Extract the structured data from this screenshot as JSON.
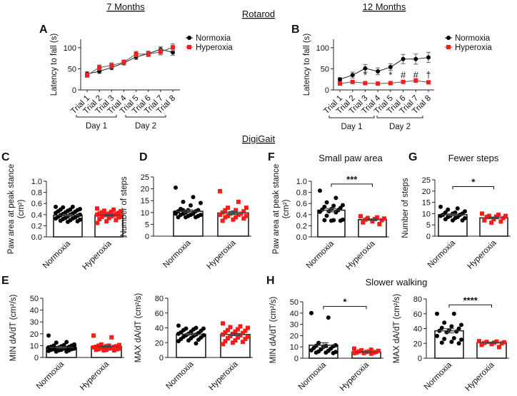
{
  "headings": {
    "seven_months": "7 Months",
    "twelve_months": "12 Months",
    "rotarod": "Rotarod",
    "digigait": "DigiGait"
  },
  "colors": {
    "normoxia": "#000000",
    "hyperoxia": "#ff1a1a",
    "error": "#777777"
  },
  "chart_data": [
    {
      "id": "A",
      "type": "line",
      "letter": "A",
      "title": "",
      "ylabel": "Latency to fall (s)",
      "ylim": [
        0,
        120
      ],
      "yticks": [
        0,
        50,
        100
      ],
      "categories": [
        "Trial 1",
        "Trial 2",
        "Trial 3",
        "Trial 4",
        "Trial 5",
        "Trial 6",
        "Trial 7",
        "Trial 8"
      ],
      "groups": [
        {
          "label": "Day 1"
        },
        {
          "label": "Day 2"
        }
      ],
      "legend": "right",
      "series": [
        {
          "name": "Normoxia",
          "marker": "circle",
          "values": [
            38,
            44,
            53,
            64,
            78,
            86,
            96,
            89
          ],
          "error": [
            5,
            5,
            5,
            5,
            6,
            6,
            6,
            7
          ]
        },
        {
          "name": "Hyperoxia",
          "marker": "square",
          "values": [
            35,
            53,
            58,
            66,
            85,
            85,
            90,
            101
          ],
          "error": [
            5,
            6,
            6,
            5,
            6,
            6,
            7,
            8
          ]
        }
      ],
      "annotations": []
    },
    {
      "id": "B",
      "type": "line",
      "letter": "B",
      "title": "",
      "ylabel": "Latency to fall (s)",
      "ylim": [
        0,
        120
      ],
      "yticks": [
        0,
        50,
        100
      ],
      "categories": [
        "Trial 1",
        "Trial 2",
        "Trial 3",
        "Trial 4",
        "Trial 5",
        "Trial 6",
        "Trial 7",
        "Trial 8"
      ],
      "groups": [
        {
          "label": "Day 1"
        },
        {
          "label": "Day 2"
        }
      ],
      "legend": "right",
      "series": [
        {
          "name": "Normoxia",
          "marker": "circle",
          "values": [
            25,
            35,
            51,
            44,
            54,
            73,
            73,
            77
          ],
          "error": [
            4,
            7,
            9,
            8,
            8,
            11,
            12,
            12
          ]
        },
        {
          "name": "Hyperoxia",
          "marker": "square",
          "values": [
            15,
            19,
            16,
            15,
            16,
            19,
            22,
            18
          ],
          "error": [
            2,
            2,
            2,
            2,
            2,
            2,
            2,
            2
          ]
        }
      ],
      "annotations": [
        {
          "trial": 3,
          "text": "*"
        },
        {
          "trial": 5,
          "text": "*"
        },
        {
          "trial": 6,
          "text": "#"
        },
        {
          "trial": 7,
          "text": "#"
        },
        {
          "trial": 8,
          "text": "†"
        }
      ]
    },
    {
      "id": "C",
      "type": "bar",
      "letter": "C",
      "title": "",
      "ylabel": [
        "Paw area at peak stance",
        "(cm²)"
      ],
      "ylim": [
        0,
        1.0
      ],
      "yticks": [
        "0.0",
        "0.2",
        "0.4",
        "0.6",
        "0.8",
        "1.0"
      ],
      "categories": [
        "Normoxia",
        "Hyperoxia"
      ],
      "means": [
        0.39,
        0.39
      ],
      "sem": [
        0.015,
        0.012
      ],
      "significance": null,
      "points": [
        [
          0.54,
          0.54,
          0.53,
          0.5,
          0.49,
          0.49,
          0.48,
          0.47,
          0.46,
          0.45,
          0.44,
          0.43,
          0.42,
          0.41,
          0.4,
          0.4,
          0.39,
          0.38,
          0.37,
          0.36,
          0.35,
          0.34,
          0.33,
          0.33,
          0.32,
          0.31,
          0.3,
          0.29,
          0.28,
          0.27
        ],
        [
          0.51,
          0.49,
          0.47,
          0.46,
          0.45,
          0.44,
          0.43,
          0.42,
          0.42,
          0.41,
          0.4,
          0.4,
          0.39,
          0.39,
          0.38,
          0.37,
          0.36,
          0.35,
          0.34,
          0.32,
          0.3,
          0.28,
          0.25
        ]
      ]
    },
    {
      "id": "D",
      "type": "bar",
      "letter": "D",
      "title": "",
      "ylabel": [
        "Number of steps"
      ],
      "ylim": [
        0,
        25
      ],
      "yticks": [
        "0",
        "5",
        "10",
        "15",
        "20",
        "25"
      ],
      "categories": [
        "Normoxia",
        "Hyperoxia"
      ],
      "means": [
        10.5,
        9.8
      ],
      "sem": [
        0.6,
        0.6
      ],
      "significance": null,
      "points": [
        [
          20.5,
          16.5,
          14.5,
          14,
          13,
          11.5,
          11,
          11,
          10.5,
          10.5,
          10,
          10,
          9.5,
          9.5,
          9,
          9,
          9,
          8.5,
          8.5,
          8,
          8,
          8,
          9.5,
          10,
          11
        ],
        [
          19,
          14.5,
          12,
          12,
          11,
          11,
          10.5,
          10,
          10,
          9.5,
          9.5,
          9,
          9,
          8.5,
          8.5,
          8,
          8,
          7.5,
          7,
          6.5
        ]
      ]
    },
    {
      "id": "E1",
      "type": "bar",
      "letter": "E",
      "title": "",
      "ylabel": [
        "MIN dA/dT (cm²/s)"
      ],
      "ylim": [
        0,
        50
      ],
      "yticks": [
        "0",
        "10",
        "20",
        "30",
        "40",
        "50"
      ],
      "categories": [
        "Normoxia",
        "Hyperoxia"
      ],
      "means": [
        8.5,
        9.3
      ],
      "sem": [
        0.6,
        0.7
      ],
      "significance": null,
      "points": [
        [
          18.5,
          13,
          12.5,
          11,
          10.5,
          10,
          10,
          9.5,
          9,
          9,
          8.5,
          8.5,
          8,
          8,
          7.5,
          7.5,
          7,
          7,
          6.5,
          6.5,
          6,
          6,
          5.5,
          5,
          5,
          10,
          9
        ],
        [
          18.5,
          17,
          11,
          10.5,
          10,
          10,
          9.5,
          9.5,
          9,
          9,
          8.5,
          8.5,
          8,
          8,
          7.5,
          7.5,
          7,
          7,
          6.5,
          6.5,
          6,
          6
        ]
      ]
    },
    {
      "id": "E2",
      "type": "bar",
      "letter": "",
      "title": "",
      "ylabel": [
        "MAX dA/dT (cm²/s)"
      ],
      "ylim": [
        0,
        80
      ],
      "yticks": [
        "0",
        "20",
        "40",
        "60",
        "80"
      ],
      "categories": [
        "Normoxia",
        "Hyperoxia"
      ],
      "means": [
        31.5,
        31
      ],
      "sem": [
        1.2,
        1.5
      ],
      "significance": null,
      "points": [
        [
          43,
          40,
          39,
          39,
          38,
          37,
          36,
          35,
          34,
          33,
          32,
          32,
          31,
          30,
          30,
          29,
          28,
          27,
          26,
          25,
          24,
          23,
          22,
          19
        ],
        [
          46,
          42,
          41,
          40,
          38,
          37,
          36,
          35,
          34,
          33,
          32,
          31,
          30,
          29,
          28,
          27,
          26,
          25,
          23,
          22,
          21,
          20,
          18
        ]
      ]
    },
    {
      "id": "F",
      "type": "bar",
      "letter": "F",
      "title": "Small paw area",
      "ylabel": [
        "Paw area at peak stance",
        "(cm²)"
      ],
      "ylim": [
        0,
        1.0
      ],
      "yticks": [
        "0.0",
        "0.2",
        "0.4",
        "0.6",
        "0.8",
        "1.0"
      ],
      "categories": [
        "Normoxia",
        "Hyperoxia"
      ],
      "means": [
        0.48,
        0.31
      ],
      "sem": [
        0.03,
        0.014
      ],
      "significance": {
        "label": "***",
        "level": 0.95
      },
      "points": [
        [
          0.83,
          0.7,
          0.62,
          0.57,
          0.56,
          0.54,
          0.52,
          0.5,
          0.49,
          0.48,
          0.46,
          0.45,
          0.44,
          0.38,
          0.31,
          0.3,
          0.3,
          0.29,
          0.29
        ],
        [
          0.37,
          0.35,
          0.34,
          0.33,
          0.32,
          0.31,
          0.3,
          0.28,
          0.26,
          0.23
        ]
      ]
    },
    {
      "id": "G",
      "type": "bar",
      "letter": "G",
      "title": "Fewer steps",
      "ylabel": [
        "Number of steps"
      ],
      "ylim": [
        0,
        25
      ],
      "yticks": [
        "0",
        "5",
        "10",
        "15",
        "20",
        "25"
      ],
      "categories": [
        "Normoxia",
        "Hyperoxia"
      ],
      "means": [
        9.5,
        8.1
      ],
      "sem": [
        0.4,
        0.4
      ],
      "significance": {
        "label": "*",
        "level": 22
      },
      "points": [
        [
          13,
          12.3,
          11.8,
          11,
          10.5,
          10.5,
          10,
          10,
          9.5,
          9.5,
          9,
          9,
          8.5,
          8.5,
          8,
          8,
          7.5,
          7,
          7
        ],
        [
          10,
          9.5,
          9,
          9,
          8.7,
          8.5,
          8,
          7.5,
          7,
          6.5,
          6
        ]
      ]
    },
    {
      "id": "H1",
      "type": "bar",
      "letter": "H",
      "title": "Slower walking",
      "ylabel": [
        "MIN dA/dT (cm²/s)"
      ],
      "ylim": [
        0,
        50
      ],
      "yticks": [
        "0",
        "10",
        "20",
        "30",
        "40",
        "50"
      ],
      "categories": [
        "Normoxia",
        "Hyperoxia"
      ],
      "means": [
        11.5,
        5.5
      ],
      "sem": [
        2.2,
        0.4
      ],
      "significance": {
        "label": "*",
        "level": 46
      },
      "points": [
        [
          40,
          36,
          13.5,
          11.5,
          11,
          11,
          10.5,
          10,
          9,
          8.5,
          8,
          7,
          6.5,
          6,
          5.5,
          5,
          5,
          4.5
        ],
        [
          8.5,
          7.5,
          7,
          6.5,
          6,
          6,
          5.5,
          5.5,
          5,
          5,
          4.5,
          4.5,
          4
        ]
      ]
    },
    {
      "id": "H2",
      "type": "bar",
      "letter": "",
      "title": "",
      "ylabel": [
        "MAX dA/dT (cm²/s)"
      ],
      "ylim": [
        0,
        80
      ],
      "yticks": [
        "0",
        "20",
        "40",
        "60",
        "80"
      ],
      "categories": [
        "Normoxia",
        "Hyperoxia"
      ],
      "means": [
        37,
        21
      ],
      "sem": [
        2.8,
        0.8
      ],
      "significance": {
        "label": "****",
        "level": 72
      },
      "points": [
        [
          60,
          60,
          48,
          45,
          43,
          41,
          40,
          38,
          37,
          36,
          35,
          30,
          27,
          26,
          25,
          22,
          21,
          20
        ],
        [
          23,
          22.5,
          22,
          21.5,
          21,
          20.5,
          20,
          19,
          18,
          15
        ]
      ]
    }
  ]
}
